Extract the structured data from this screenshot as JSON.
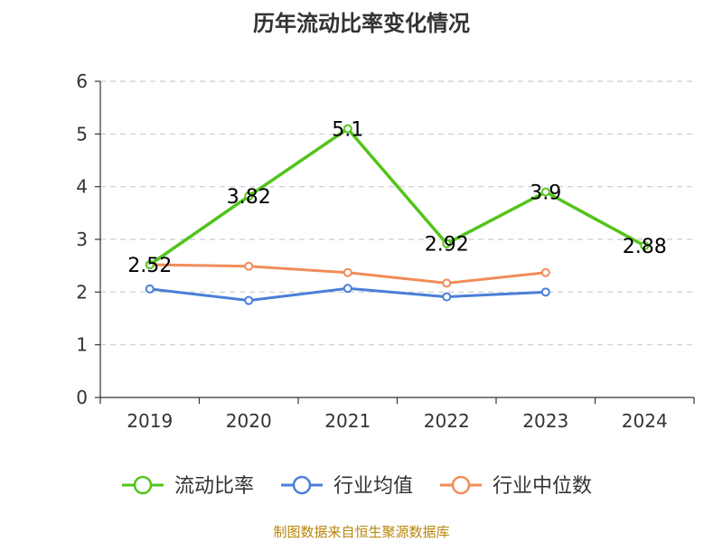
{
  "chart_data": {
    "type": "line",
    "title": "历年流动比率变化情况",
    "xlabel": "",
    "ylabel": "",
    "categories": [
      "2019",
      "2020",
      "2021",
      "2022",
      "2023",
      "2024"
    ],
    "ylim": [
      0,
      6
    ],
    "yticks": [
      0,
      1,
      2,
      3,
      4,
      5,
      6
    ],
    "grid": true,
    "legend_position": "bottom",
    "series": [
      {
        "name": "流动比率",
        "color": "#52c41a",
        "values": [
          2.52,
          3.82,
          5.1,
          2.92,
          3.9,
          2.88
        ],
        "labels": [
          "2.52",
          "3.82",
          "5.1",
          "2.92",
          "3.9",
          "2.88"
        ]
      },
      {
        "name": "行业均值",
        "color": "#4a7fd9",
        "values": [
          2.06,
          1.84,
          2.07,
          1.91,
          2.0,
          null
        ]
      },
      {
        "name": "行业中位数",
        "color": "#f28c5a",
        "values": [
          2.52,
          2.49,
          2.37,
          2.17,
          2.37,
          null
        ]
      }
    ]
  },
  "source_note": "制图数据来自恒生聚源数据库"
}
